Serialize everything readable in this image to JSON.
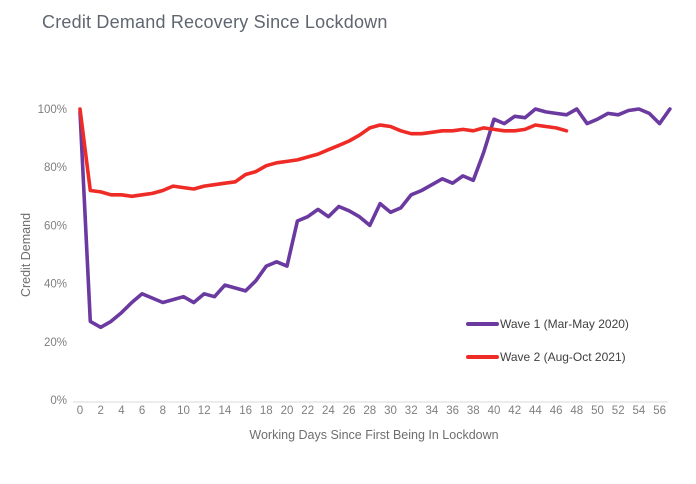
{
  "title": "Credit Demand Recovery Since Lockdown",
  "chart_data": {
    "type": "line",
    "title": "Credit Demand Recovery Since Lockdown",
    "xlabel": "Working Days Since First Being In Lockdown",
    "ylabel": "Credit Demand",
    "xlim": [
      0,
      57
    ],
    "ylim": [
      0,
      100
    ],
    "grid": false,
    "legend_position": "inside lower-right",
    "x_unit": "working days",
    "y_unit": "percent",
    "x_ticks": [
      0,
      2,
      4,
      6,
      8,
      10,
      12,
      14,
      16,
      18,
      20,
      22,
      24,
      26,
      28,
      30,
      32,
      34,
      36,
      38,
      40,
      42,
      44,
      46,
      48,
      50,
      52,
      54,
      56
    ],
    "y_ticks": [
      {
        "label": "0%",
        "value": 0
      },
      {
        "label": "20%",
        "value": 20
      },
      {
        "label": "40%",
        "value": 40
      },
      {
        "label": "60%",
        "value": 60
      },
      {
        "label": "80%",
        "value": 80
      },
      {
        "label": "100%",
        "value": 100
      }
    ],
    "series": [
      {
        "name": "Wave 1 (Mar-May 2020)",
        "color": "#6B3AA0",
        "x_start": 0,
        "x_step": 1,
        "values": [
          99,
          27,
          25,
          27,
          30,
          33.5,
          36.5,
          35,
          33.5,
          34.5,
          35.5,
          33.5,
          36.5,
          35.5,
          39.5,
          38.5,
          37.5,
          41,
          46,
          47.5,
          46,
          61.5,
          63,
          65.5,
          63,
          66.5,
          65,
          63,
          60,
          67.5,
          64.5,
          66,
          70.5,
          72,
          74,
          76,
          74.5,
          77,
          75.5,
          85,
          96.5,
          95,
          97.5,
          97,
          100,
          99,
          98.5,
          98,
          100,
          95,
          96.5,
          98.5,
          98,
          99.5,
          100,
          98.5,
          95,
          100
        ]
      },
      {
        "name": "Wave 2 (Aug-Oct 2021)",
        "color": "#EF2B25",
        "x_start": 0,
        "x_step": 1,
        "values": [
          100,
          72,
          71.5,
          70.5,
          70.5,
          70,
          70.5,
          71,
          72,
          73.5,
          73,
          72.5,
          73.5,
          74,
          74.5,
          75,
          77.5,
          78.5,
          80.5,
          81.5,
          82,
          82.5,
          83.5,
          84.5,
          86,
          87.5,
          89,
          91,
          93.5,
          94.5,
          94,
          92.5,
          91.5,
          91.5,
          92,
          92.5,
          92.5,
          93,
          92.5,
          93.5,
          93,
          92.5,
          92.5,
          93,
          94.5,
          94,
          93.5,
          92.5
        ]
      }
    ],
    "colors": {
      "axis_line": "#d9d9d9",
      "title_text": "#5f6670",
      "tick_text": "#7f7f7f",
      "axis_title_text": "#6e6e6e",
      "legend_text": "#404040",
      "background": "#ffffff"
    }
  }
}
